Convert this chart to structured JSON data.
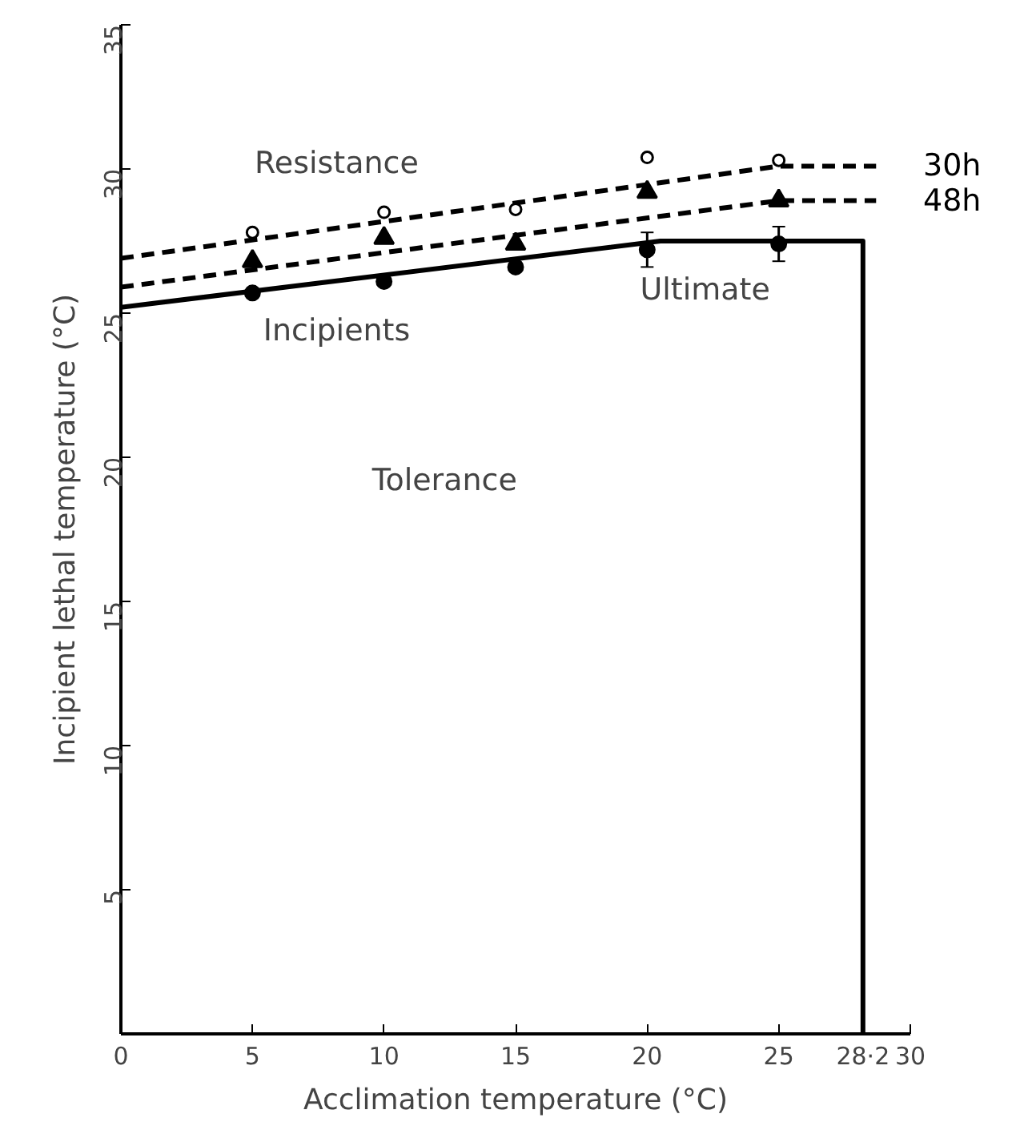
{
  "chart_data": {
    "type": "line",
    "xlabel": "Acclimation temperature (°C)",
    "ylabel": "Incipient lethal temperature (°C)",
    "xlim": [
      0,
      30
    ],
    "ylim": [
      0,
      35
    ],
    "xticks": [
      0,
      5,
      10,
      15,
      20,
      25,
      {
        "value": 28.2,
        "label": "28·2"
      },
      30
    ],
    "yticks": [
      5,
      10,
      15,
      20,
      25,
      30,
      35
    ],
    "grid": false,
    "series": [
      {
        "name": "30h",
        "color": "#000000",
        "line_style": "dashed",
        "marker": "none",
        "x": [
          0,
          25,
          28.7
        ],
        "values": [
          26.9,
          30.1,
          30.1
        ]
      },
      {
        "name": "48h",
        "color": "#000000",
        "line_style": "dashed",
        "marker": "none",
        "x": [
          0,
          25,
          28.7
        ],
        "values": [
          25.9,
          28.9,
          28.9
        ]
      },
      {
        "color": "#000000",
        "line_style": "solid",
        "marker": "none",
        "x": [
          0,
          20.5,
          28.2,
          28.2
        ],
        "values": [
          25.2,
          27.5,
          27.5,
          0
        ]
      },
      {
        "type": "scatter",
        "color": "#000000",
        "marker": "circle",
        "x": [
          5,
          10,
          15,
          20,
          25
        ],
        "values": [
          27.8,
          28.5,
          28.6,
          30.4,
          30.3
        ]
      },
      {
        "type": "scatter",
        "color": "#000000",
        "marker": "triangle",
        "x": [
          5,
          10,
          15,
          20,
          25
        ],
        "values": [
          26.8,
          27.6,
          27.4,
          29.2,
          28.9
        ]
      },
      {
        "type": "scatter",
        "color": "#000000",
        "marker": "circle",
        "x": [
          5,
          10,
          15,
          20,
          25
        ],
        "values": [
          25.7,
          26.1,
          26.6,
          27.2,
          27.4
        ],
        "errors": [
          null,
          null,
          null,
          0.6,
          0.6
        ]
      }
    ],
    "annotations": [
      "Resistance",
      "Incipients",
      "Ultimate",
      "Tolerance"
    ]
  }
}
